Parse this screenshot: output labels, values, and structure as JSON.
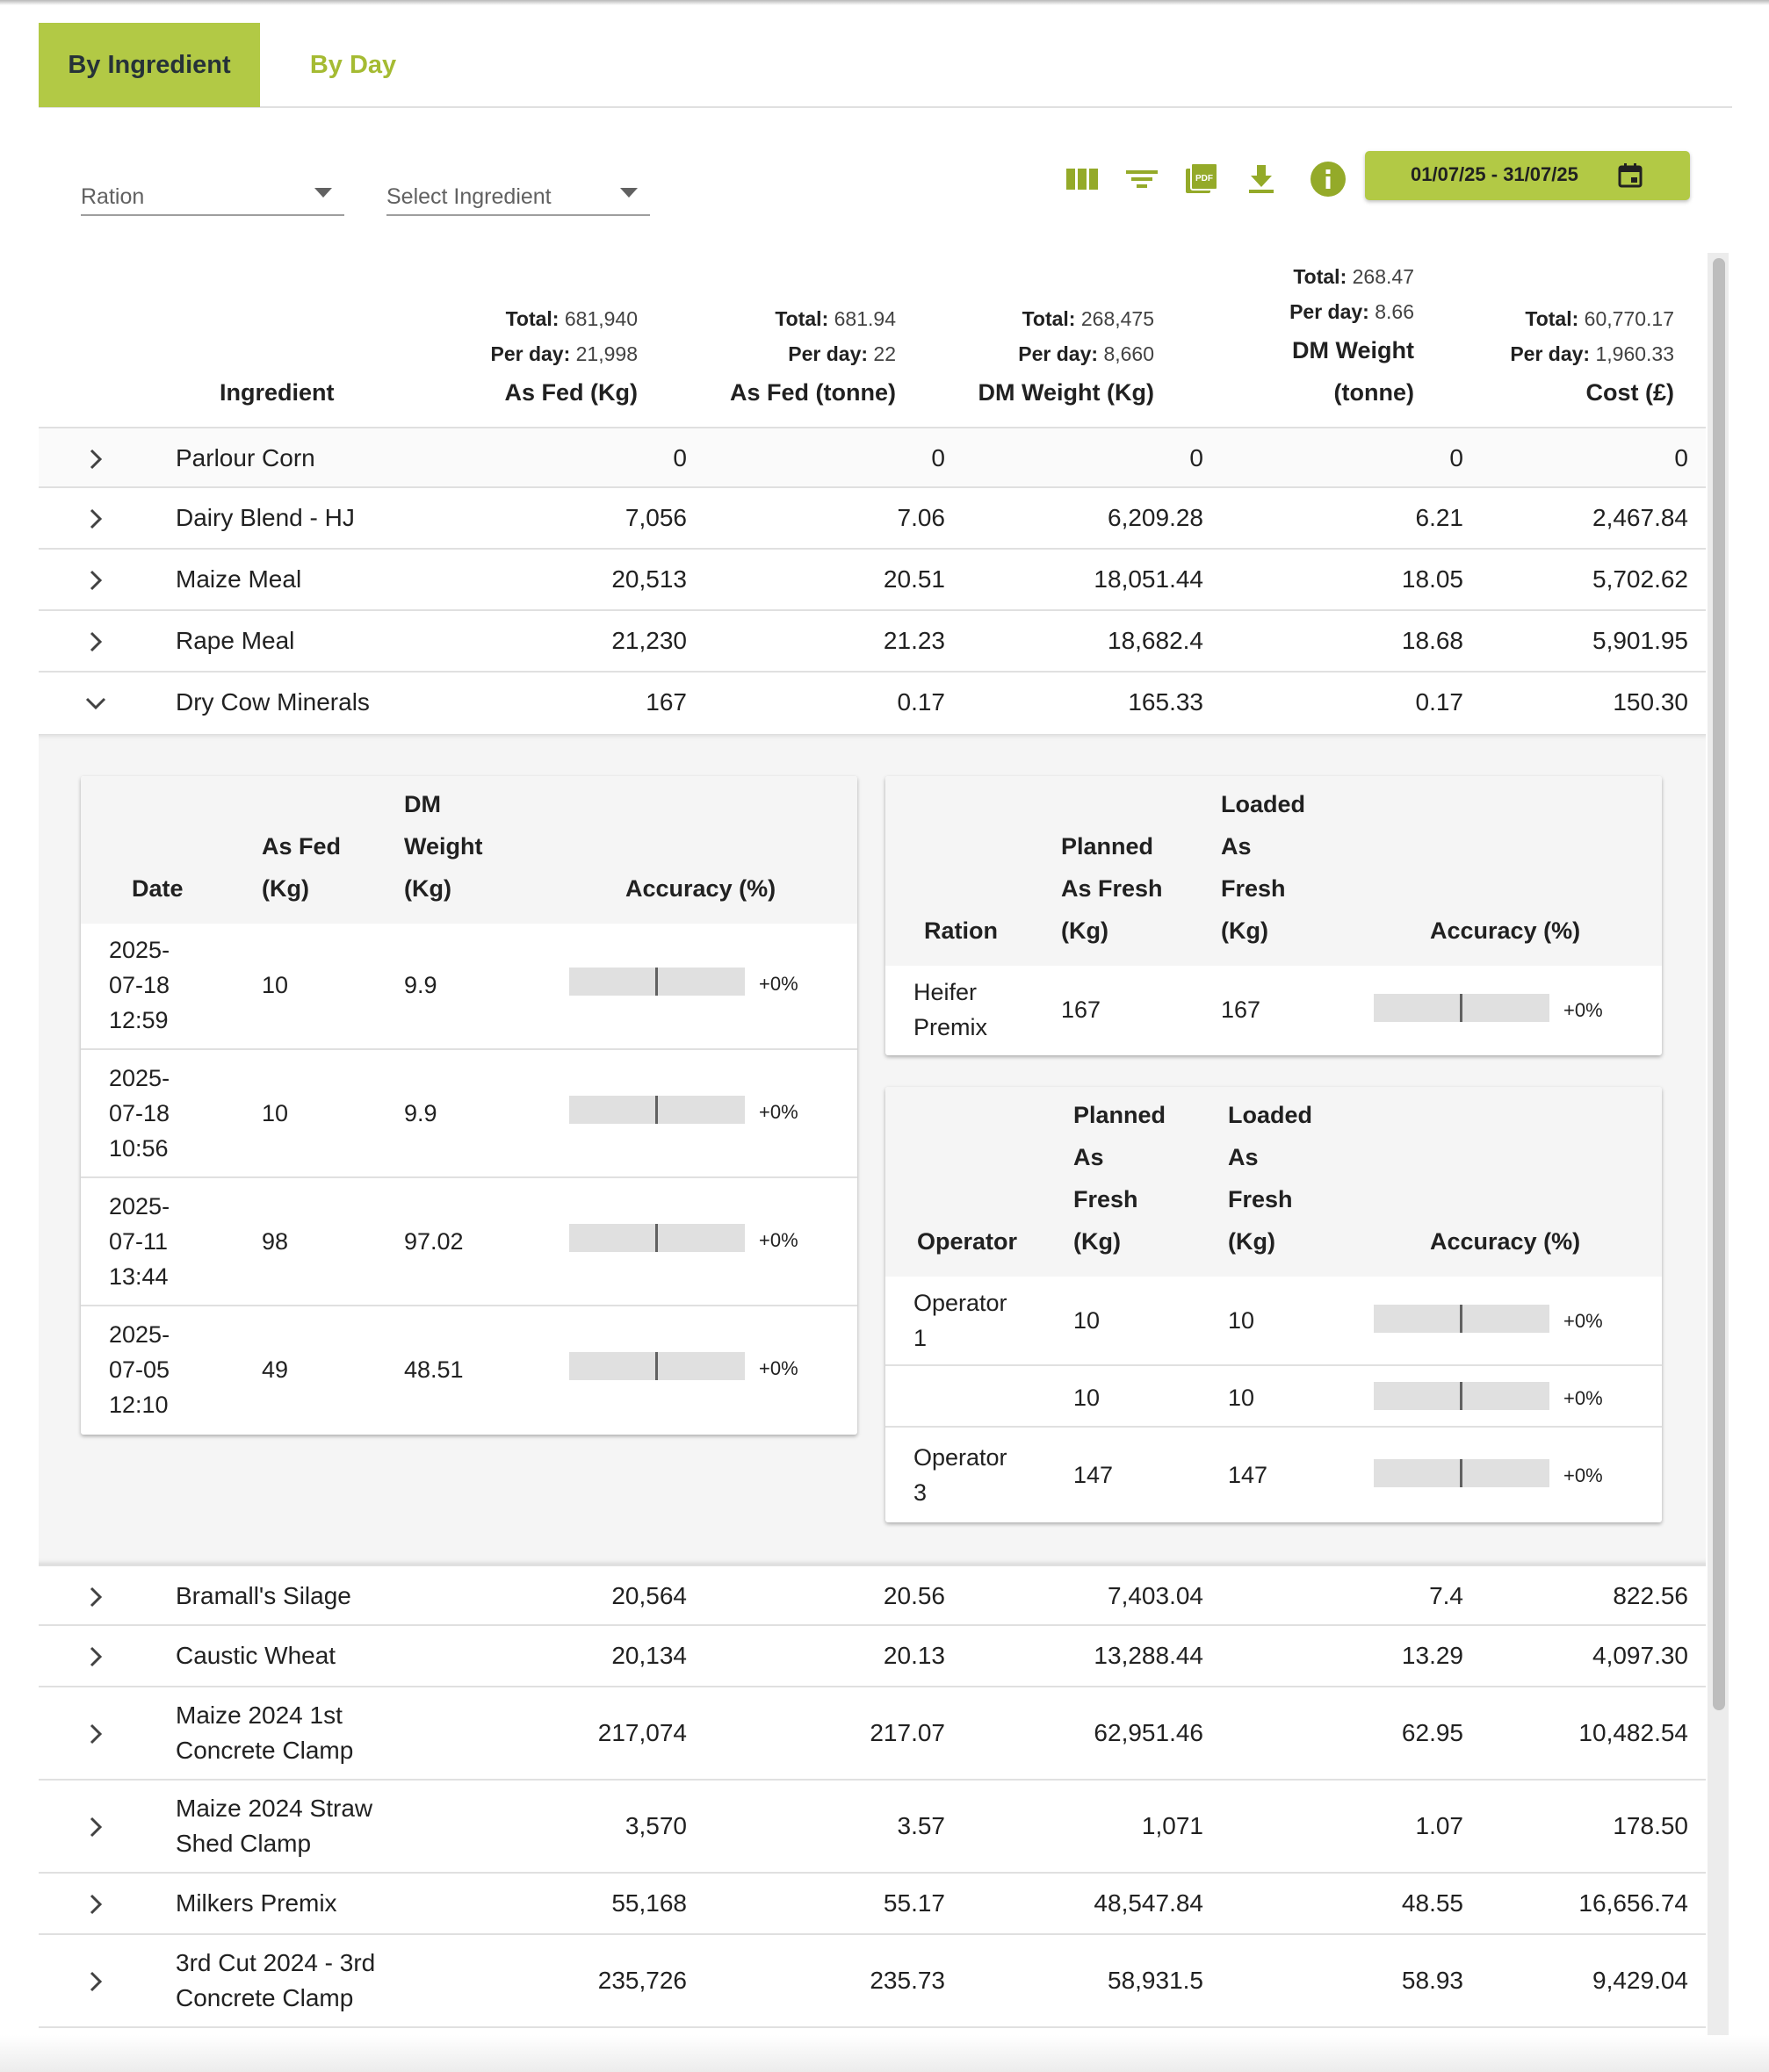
{
  "tabs": {
    "by_ingredient": "By Ingredient",
    "by_day": "By Day"
  },
  "filters": {
    "ration": "Ration",
    "ingredient": "Select Ingredient"
  },
  "date_range": "01/07/25 - 31/07/25",
  "labels": {
    "total": "Total:",
    "per_day": "Per day:"
  },
  "colors": {
    "accent": "#b2c945",
    "accent_text": "#a5bb33",
    "icon": "#94aa29"
  },
  "icons": [
    "view-column-icon",
    "filter-list-icon",
    "pdf-icon",
    "download-icon",
    "info-icon",
    "calendar-icon"
  ],
  "columns": {
    "ingredient": "Ingredient",
    "as_fed_kg": {
      "label": "As Fed (Kg)",
      "total": "681,940",
      "per_day": "21,998"
    },
    "as_fed_t": {
      "label": "As Fed (tonne)",
      "total": "681.94",
      "per_day": "22"
    },
    "dm_kg": {
      "label": "DM Weight (Kg)",
      "total": "268,475",
      "per_day": "8,660"
    },
    "dm_t": {
      "label1": "DM Weight",
      "label2": "(tonne)",
      "total": "268.47",
      "per_day": "8.66"
    },
    "cost": {
      "label": "Cost (£)",
      "total": "60,770.17",
      "per_day": "1,960.33"
    }
  },
  "rows": [
    {
      "name": "Parlour Corn",
      "v": [
        "0",
        "0",
        "0",
        "0",
        "0"
      ]
    },
    {
      "name": "Dairy Blend - HJ",
      "v": [
        "7,056",
        "7.06",
        "6,209.28",
        "6.21",
        "2,467.84"
      ]
    },
    {
      "name": "Maize Meal",
      "v": [
        "20,513",
        "20.51",
        "18,051.44",
        "18.05",
        "5,702.62"
      ]
    },
    {
      "name": "Rape Meal",
      "v": [
        "21,230",
        "21.23",
        "18,682.4",
        "18.68",
        "5,901.95"
      ]
    },
    {
      "name": "Dry Cow Minerals",
      "v": [
        "167",
        "0.17",
        "165.33",
        "0.17",
        "150.30"
      ]
    },
    {
      "name": "Bramall's Silage",
      "v": [
        "20,564",
        "20.56",
        "7,403.04",
        "7.4",
        "822.56"
      ]
    },
    {
      "name": "Caustic Wheat",
      "v": [
        "20,134",
        "20.13",
        "13,288.44",
        "13.29",
        "4,097.30"
      ]
    },
    {
      "name1": "Maize 2024 1st",
      "name2": "Concrete Clamp",
      "v": [
        "217,074",
        "217.07",
        "62,951.46",
        "62.95",
        "10,482.54"
      ]
    },
    {
      "name1": "Maize 2024 Straw",
      "name2": "Shed Clamp",
      "v": [
        "3,570",
        "3.57",
        "1,071",
        "1.07",
        "178.50"
      ]
    },
    {
      "name": "Milkers Premix",
      "v": [
        "55,168",
        "55.17",
        "48,547.84",
        "48.55",
        "16,656.74"
      ]
    },
    {
      "name1": "3rd Cut 2024 - 3rd",
      "name2": "Concrete Clamp",
      "v": [
        "235,726",
        "235.73",
        "58,931.5",
        "58.93",
        "9,429.04"
      ]
    }
  ],
  "detail": {
    "by_date": {
      "headers": {
        "date": "Date",
        "asfed1": "As Fed",
        "asfed2": "(Kg)",
        "dm1": "DM",
        "dm2": "Weight",
        "dm3": "(Kg)",
        "acc": "Accuracy (%)"
      },
      "rows": [
        {
          "d1": "2025-",
          "d2": "07-18",
          "d3": "12:59",
          "asfed": "10",
          "dm": "9.9",
          "acc": 0,
          "acc_label": "+0%"
        },
        {
          "d1": "2025-",
          "d2": "07-18",
          "d3": "10:56",
          "asfed": "10",
          "dm": "9.9",
          "acc": 0,
          "acc_label": "+0%"
        },
        {
          "d1": "2025-",
          "d2": "07-11",
          "d3": "13:44",
          "asfed": "98",
          "dm": "97.02",
          "acc": 0,
          "acc_label": "+0%"
        },
        {
          "d1": "2025-",
          "d2": "07-05",
          "d3": "12:10",
          "asfed": "49",
          "dm": "48.51",
          "acc": 0,
          "acc_label": "+0%"
        }
      ]
    },
    "by_ration": {
      "headers": {
        "ration": "Ration",
        "p1": "Planned",
        "p2": "As Fresh",
        "p3": "(Kg)",
        "l1": "Loaded",
        "l2": "As",
        "l3": "Fresh",
        "l4": "(Kg)",
        "acc": "Accuracy (%)"
      },
      "rows": [
        {
          "r1": "Heifer",
          "r2": "Premix",
          "planned": "167",
          "loaded": "167",
          "acc": 0,
          "acc_label": "+0%"
        }
      ]
    },
    "by_operator": {
      "headers": {
        "operator": "Operator",
        "p1": "Planned",
        "p2": "As",
        "p3": "Fresh",
        "p4": "(Kg)",
        "l1": "Loaded",
        "l2": "As",
        "l3": "Fresh",
        "l4": "(Kg)",
        "acc": "Accuracy (%)"
      },
      "rows": [
        {
          "o1": "Operator",
          "o2": "1",
          "planned": "10",
          "loaded": "10",
          "acc": 0,
          "acc_label": "+0%"
        },
        {
          "o1": "",
          "o2": "",
          "planned": "10",
          "loaded": "10",
          "acc": 0,
          "acc_label": "+0%"
        },
        {
          "o1": "Operator",
          "o2": "3",
          "planned": "147",
          "loaded": "147",
          "acc": 0,
          "acc_label": "+0%"
        }
      ]
    }
  }
}
